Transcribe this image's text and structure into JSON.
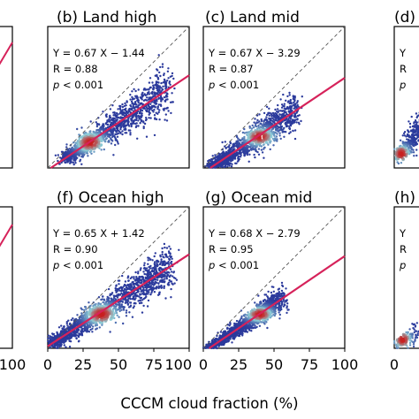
{
  "figure": {
    "xlabel": "CCCM cloud fraction (%)"
  },
  "chart_data": [
    {
      "type": "scatter",
      "panel": "a",
      "title": "",
      "stats": [],
      "xlim": [
        0,
        100
      ],
      "ylim": [
        0,
        100
      ],
      "x_ticks": [
        "100"
      ],
      "y_ticks": [],
      "fit": {
        "slope": null,
        "intercept": null
      },
      "visible": "partial"
    },
    {
      "type": "scatter",
      "panel": "b",
      "title": "(b) Land high",
      "stats": [
        "Y = 0.67 X − 1.44",
        "R = 0.88",
        "p < 0.001"
      ],
      "xlim": [
        0,
        100
      ],
      "ylim": [
        0,
        100
      ],
      "x_ticks": [],
      "y_ticks": [],
      "fit": {
        "slope": 0.67,
        "intercept": -1.44
      },
      "cloud": {
        "x_range": [
          10,
          88
        ],
        "y_range": [
          5,
          72
        ],
        "density_peak": [
          30,
          18
        ]
      }
    },
    {
      "type": "scatter",
      "panel": "c",
      "title": "(c)  Land mid",
      "stats": [
        "Y = 0.67 X − 3.29",
        "R = 0.87",
        "p < 0.001"
      ],
      "xlim": [
        0,
        100
      ],
      "ylim": [
        0,
        100
      ],
      "x_ticks": [],
      "y_ticks": [],
      "fit": {
        "slope": 0.67,
        "intercept": -3.29
      },
      "cloud": {
        "x_range": [
          3,
          68
        ],
        "y_range": [
          0,
          48
        ],
        "density_peak": [
          40,
          22
        ]
      }
    },
    {
      "type": "scatter",
      "panel": "d",
      "title": "(d)",
      "stats": [
        "Y",
        "R",
        "p"
      ],
      "xlim": [
        0,
        100
      ],
      "ylim": [
        0,
        100
      ],
      "x_ticks": [],
      "y_ticks": [],
      "fit": {
        "slope": null,
        "intercept": null
      },
      "visible": "partial"
    },
    {
      "type": "scatter",
      "panel": "e",
      "title": "",
      "stats": [],
      "xlim": [
        0,
        100
      ],
      "ylim": [
        0,
        100
      ],
      "x_ticks": [
        "100"
      ],
      "y_ticks": [],
      "fit": {
        "slope": null,
        "intercept": null
      },
      "visible": "partial"
    },
    {
      "type": "scatter",
      "panel": "f",
      "title": "(f) Ocean high",
      "stats": [
        "Y = 0.65 X + 1.42",
        "R = 0.90",
        "p < 0.001"
      ],
      "xlim": [
        0,
        100
      ],
      "ylim": [
        0,
        100
      ],
      "x_ticks": [
        "0",
        "25",
        "50",
        "75",
        "100"
      ],
      "y_ticks": [],
      "fit": {
        "slope": 0.65,
        "intercept": 1.42
      },
      "cloud": {
        "x_range": [
          3,
          90
        ],
        "y_range": [
          0,
          68
        ],
        "density_peak": [
          38,
          24
        ]
      }
    },
    {
      "type": "scatter",
      "panel": "g",
      "title": "(g) Ocean mid",
      "stats": [
        "Y = 0.68 X − 2.79",
        "R = 0.95",
        "p < 0.001"
      ],
      "xlim": [
        0,
        100
      ],
      "ylim": [
        0,
        100
      ],
      "x_ticks": [
        "0",
        "25",
        "50",
        "75",
        "100"
      ],
      "y_ticks": [],
      "fit": {
        "slope": 0.68,
        "intercept": -2.79
      },
      "cloud": {
        "x_range": [
          3,
          58
        ],
        "y_range": [
          0,
          38
        ],
        "density_peak": [
          40,
          24
        ]
      }
    },
    {
      "type": "scatter",
      "panel": "h",
      "title": "(h)",
      "stats": [
        "Y",
        "R",
        "p"
      ],
      "xlim": [
        0,
        100
      ],
      "ylim": [
        0,
        100
      ],
      "x_ticks": [
        "0"
      ],
      "y_ticks": [],
      "fit": {
        "slope": null,
        "intercept": null
      },
      "visible": "partial"
    }
  ],
  "colors": {
    "fit_line": "#d6225a",
    "one_to_one": "#555555",
    "density_low": "#2b3a9c",
    "density_mid": "#8fd0d8",
    "density_high": "#c81e1e"
  }
}
